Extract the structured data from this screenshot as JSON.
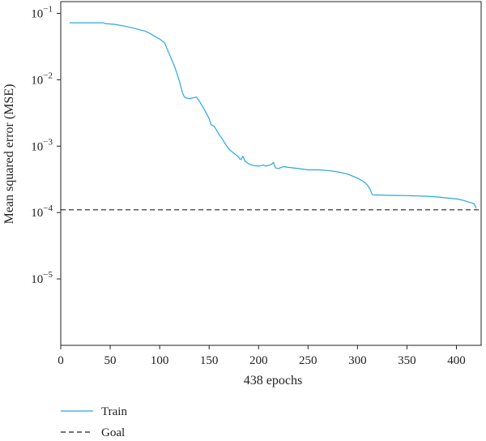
{
  "chart_data": {
    "type": "line",
    "xlabel": "438 epochs",
    "ylabel": "Mean squared error (MSE)",
    "x_scale": "linear",
    "y_scale": "log",
    "xlim": [
      0,
      425
    ],
    "ylim": [
      1e-06,
      0.15
    ],
    "x_ticks": [
      0,
      50,
      100,
      150,
      200,
      250,
      300,
      350,
      400
    ],
    "y_ticks": [
      {
        "value": 0.1,
        "base": "10",
        "exp": "−1"
      },
      {
        "value": 0.01,
        "base": "10",
        "exp": "−2"
      },
      {
        "value": 0.001,
        "base": "10",
        "exp": "−3"
      },
      {
        "value": 0.0001,
        "base": "10",
        "exp": "−4"
      },
      {
        "value": 1e-05,
        "base": "10",
        "exp": "−5"
      }
    ],
    "grid": false,
    "legend_position": "bottom-left",
    "series": [
      {
        "name": "Train",
        "color": "#29a8e0",
        "style": "solid",
        "x": [
          9,
          20,
          30,
          40,
          43,
          45,
          55,
          65,
          75,
          85,
          90,
          95,
          100,
          105,
          110,
          115,
          120,
          123,
          125,
          127,
          130,
          133,
          135,
          137,
          140,
          145,
          150,
          152,
          155,
          158,
          160,
          163,
          166,
          170,
          175,
          178,
          180,
          181,
          182,
          183,
          184,
          185,
          186,
          190,
          195,
          200,
          203,
          205,
          207,
          210,
          213,
          215,
          217,
          220,
          225,
          230,
          240,
          250,
          260,
          270,
          280,
          290,
          300,
          305,
          310,
          313,
          315,
          320,
          330,
          340,
          350,
          360,
          370,
          380,
          390,
          400,
          405,
          410,
          415,
          418,
          420
        ],
        "y": [
          0.072,
          0.072,
          0.072,
          0.072,
          0.072,
          0.07,
          0.068,
          0.064,
          0.059,
          0.054,
          0.05,
          0.045,
          0.041,
          0.036,
          0.024,
          0.016,
          0.0095,
          0.0064,
          0.0055,
          0.0053,
          0.0052,
          0.0053,
          0.0054,
          0.0055,
          0.0048,
          0.0036,
          0.0026,
          0.0021,
          0.002,
          0.0017,
          0.0015,
          0.0013,
          0.0011,
          0.0009,
          0.00078,
          0.00072,
          0.00068,
          0.00064,
          0.00063,
          0.00065,
          0.0007,
          0.00067,
          0.0006,
          0.00054,
          0.00051,
          0.0005,
          0.00051,
          0.00052,
          0.0005,
          0.00051,
          0.00053,
          0.00057,
          0.00047,
          0.00046,
          0.00049,
          0.00048,
          0.00046,
          0.00044,
          0.00044,
          0.00043,
          0.00041,
          0.00038,
          0.00033,
          0.0003,
          0.00026,
          0.00022,
          0.000185,
          0.000184,
          0.000182,
          0.000181,
          0.00018,
          0.000178,
          0.000176,
          0.000172,
          0.000166,
          0.00016,
          0.000155,
          0.000148,
          0.00014,
          0.000135,
          0.000115
        ]
      },
      {
        "name": "Goal",
        "color": "#222222",
        "style": "dashed",
        "x": [
          0,
          425
        ],
        "y": [
          0.00011,
          0.00011
        ]
      }
    ]
  },
  "legend": [
    {
      "label": "Train",
      "color": "#29a8e0",
      "style": "solid"
    },
    {
      "label": "Goal",
      "color": "#222222",
      "style": "dashed"
    }
  ]
}
